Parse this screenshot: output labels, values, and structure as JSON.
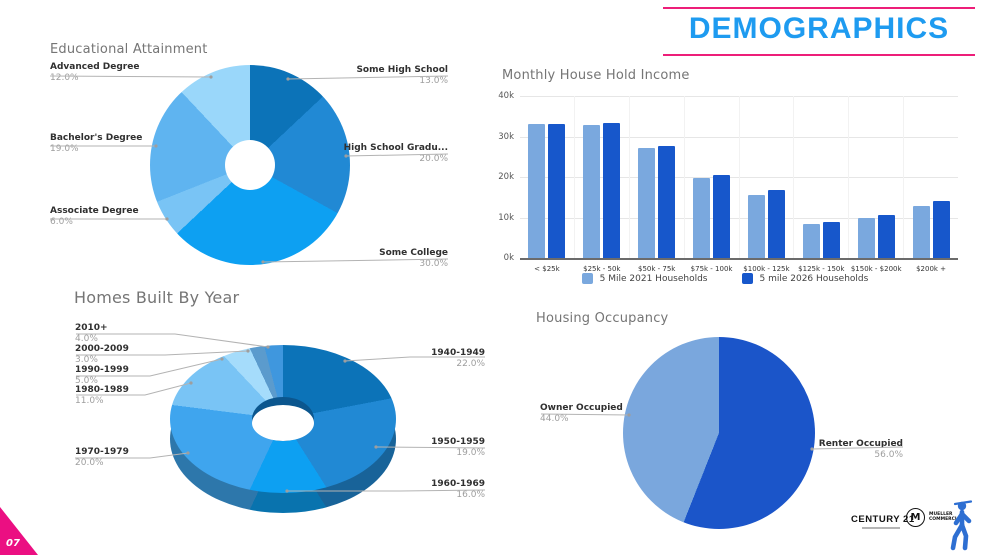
{
  "header": {
    "title": "DEMOGRAPHICS"
  },
  "page_number": "07",
  "colors": {
    "accent_blue": "#1E9BF0",
    "magenta": "#ED1E79"
  },
  "chart_data": [
    {
      "id": "education",
      "type": "donut",
      "title": "Educational Attainment",
      "slices": [
        {
          "label": "Some High School",
          "value": 13.0,
          "display": "13.0%",
          "color": "#0C73B8"
        },
        {
          "label": "High School Gradu...",
          "value": 20.0,
          "display": "20.0%",
          "color": "#2189D4"
        },
        {
          "label": "Some College",
          "value": 30.0,
          "display": "30.0%",
          "color": "#0DA0F2"
        },
        {
          "label": "Associate Degree",
          "value": 6.0,
          "display": "6.0%",
          "color": "#79C4F5"
        },
        {
          "label": "Bachelor's Degree",
          "value": 19.0,
          "display": "19.0%",
          "color": "#5FB4F0"
        },
        {
          "label": "Advanced Degree",
          "value": 12.0,
          "display": "12.0%",
          "color": "#9AD7FA"
        }
      ]
    },
    {
      "id": "income",
      "type": "bar",
      "title": "Monthly House Hold Income",
      "categories": [
        "< $25k",
        "$25k - 50k",
        "$50k - 75k",
        "$75k - 100k",
        "$100k - 125k",
        "$125k - 150k",
        "$150k - $200k",
        "$200k +"
      ],
      "series": [
        {
          "name": "5 Mile 2021 Households",
          "color": "#7AA8DE",
          "values": [
            33000,
            32800,
            27100,
            19700,
            15500,
            8400,
            9800,
            12900
          ]
        },
        {
          "name": "5 mile 2026 Households",
          "color": "#1757CB",
          "values": [
            33100,
            33300,
            27700,
            20600,
            16800,
            8900,
            10700,
            14100
          ]
        }
      ],
      "y_ticks": [
        "40k",
        "30k",
        "20k",
        "10k",
        "0k"
      ],
      "ylim": [
        0,
        40000
      ],
      "grid": true,
      "legend_position": "bottom"
    },
    {
      "id": "homes",
      "type": "donut3d",
      "title": "Homes Built By Year",
      "slices": [
        {
          "label": "1940-1949",
          "value": 22.0,
          "display": "22.0%",
          "color": "#0C73B8"
        },
        {
          "label": "1950-1959",
          "value": 19.0,
          "display": "19.0%",
          "color": "#2189D4"
        },
        {
          "label": "1960-1969",
          "value": 16.0,
          "display": "16.0%",
          "color": "#0DA0F2"
        },
        {
          "label": "1970-1979",
          "value": 20.0,
          "display": "20.0%",
          "color": "#3FA5EE"
        },
        {
          "label": "1980-1989",
          "value": 11.0,
          "display": "11.0%",
          "color": "#79C4F5"
        },
        {
          "label": "1990-1999",
          "value": 5.0,
          "display": "5.0%",
          "color": "#A5DCFB"
        },
        {
          "label": "2000-2009",
          "value": 3.0,
          "display": "3.0%",
          "color": "#5B9BCD"
        },
        {
          "label": "2010+",
          "value": 4.0,
          "display": "4.0%",
          "color": "#3F97DE"
        }
      ]
    },
    {
      "id": "occupancy",
      "type": "pie",
      "title": "Housing Occupancy",
      "slices": [
        {
          "label": "Renter Occupied",
          "value": 56.0,
          "display": "56.0%",
          "color": "#1B55C9"
        },
        {
          "label": "Owner Occupied",
          "value": 44.0,
          "display": "44.0%",
          "color": "#7AA7DD"
        }
      ]
    }
  ],
  "footer": {
    "century21_label": "CENTURY 21",
    "mueller_monogram": "M",
    "mueller_line1": "MUELLER",
    "mueller_line2": "COMMERCIAL"
  }
}
